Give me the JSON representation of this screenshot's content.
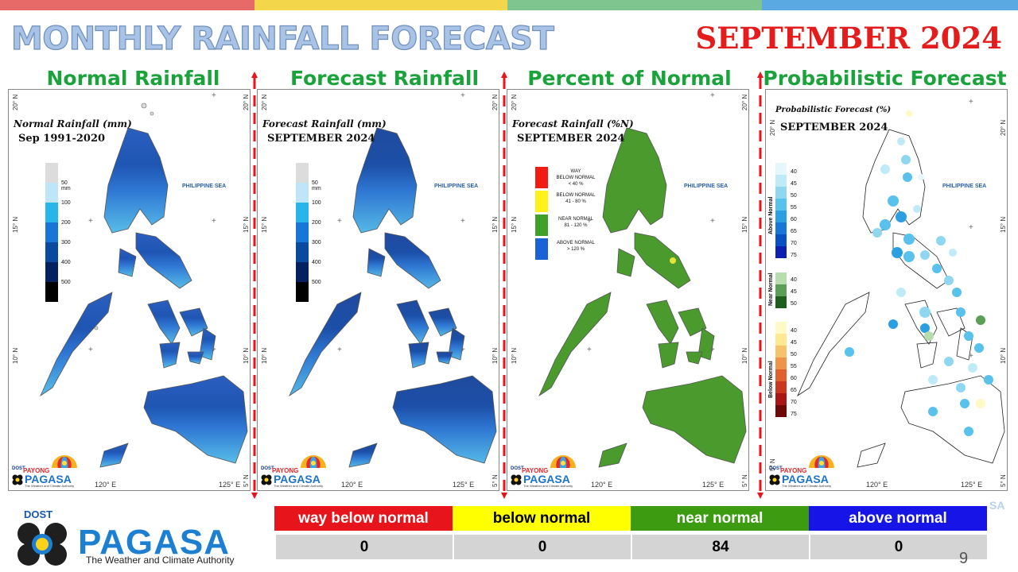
{
  "stripes": [
    "#e86a68",
    "#f3d64a",
    "#7fc58f",
    "#5aa9e2"
  ],
  "title": "MONTHLY RAINFALL FORECAST",
  "month": "SEPTEMBER 2024",
  "panels": [
    {
      "title": "Normal Rainfall",
      "caption1": "Normal Rainfall (mm)",
      "caption2": "Sep 1991-2020"
    },
    {
      "title": "Forecast Rainfall",
      "caption1": "Forecast Rainfall (mm)",
      "caption2": "SEPTEMBER 2024"
    },
    {
      "title": "Percent of Normal",
      "caption1": "Forecast Rainfall (%N)",
      "caption2": "SEPTEMBER 2024"
    },
    {
      "title": "Probabilistic Forecast",
      "caption1": "Probabilistic Forecast (%)",
      "caption2": "SEPTEMBER 2024"
    }
  ],
  "map_labels": {
    "sea": "PHILIPPINE SEA",
    "lat20": "20° N",
    "lat15": "15° N",
    "lat10": "10° N",
    "lat5": "5° N",
    "lon120": "120° E",
    "lon125": "125° E",
    "plus": "+"
  },
  "rain_legend": {
    "colors": [
      "#dcdcdc",
      "#bfe6f7",
      "#27b5ea",
      "#1877d6",
      "#0a4a9e",
      "#03215e",
      "#000000"
    ],
    "labels": [
      "50 mm",
      "100",
      "200",
      "300",
      "400",
      "500"
    ]
  },
  "pct_legend": [
    {
      "label1": "WAY",
      "label2": "BELOW NORMAL",
      "label3": "< 40 %",
      "color": "#f21d12"
    },
    {
      "label1": "",
      "label2": "BELOW NORMAL",
      "label3": "41 - 80 %",
      "color": "#fff21a"
    },
    {
      "label1": "",
      "label2": "NEAR NORMAL",
      "label3": "81 - 120 %",
      "color": "#3fa12a"
    },
    {
      "label1": "",
      "label2": "ABOVE NORMAL",
      "label3": "> 120 %",
      "color": "#1a63d6"
    }
  ],
  "prob_legend": {
    "above": {
      "axis": "Above Normal",
      "labels": [
        "40",
        "45",
        "50",
        "55",
        "60",
        "65",
        "70",
        "75"
      ],
      "colors": [
        "#e6f7fc",
        "#bfeaf7",
        "#8fd7f1",
        "#58c1ec",
        "#2b9fe2",
        "#1976d8",
        "#0b4fc4",
        "#0b1fb0"
      ]
    },
    "near": {
      "axis": "Near Normal",
      "labels": [
        "40",
        "45",
        "50"
      ],
      "colors": [
        "#b7dcae",
        "#5b9e55",
        "#1f5e1e"
      ]
    },
    "below": {
      "axis": "Below Normal",
      "labels": [
        "40",
        "45",
        "50",
        "55",
        "60",
        "65",
        "70",
        "75"
      ],
      "colors": [
        "#fff9c5",
        "#ffe892",
        "#f6c26b",
        "#ef924a",
        "#e0602f",
        "#c9371f",
        "#a81616",
        "#6d0808"
      ]
    }
  },
  "panel_logo": {
    "dost": "DOST",
    "payong": "PAYONG",
    "name": "PAGASA",
    "tag": "The Weather and Climate Authority"
  },
  "logo": {
    "dost": "DOST",
    "name": "PAGASA",
    "tagline": "The Weather and Climate Authority"
  },
  "stats": [
    {
      "label": "way below normal",
      "value": "0",
      "bg": "#e8141b",
      "fg": "#ffffff"
    },
    {
      "label": "below normal",
      "value": "0",
      "bg": "#ffff00",
      "fg": "#000000"
    },
    {
      "label": "near normal",
      "value": "84",
      "bg": "#3d9b12",
      "fg": "#ffffff"
    },
    {
      "label": "above normal",
      "value": "0",
      "bg": "#1614e6",
      "fg": "#ffffff"
    }
  ],
  "ghost_text": "SA",
  "page_number": "9"
}
